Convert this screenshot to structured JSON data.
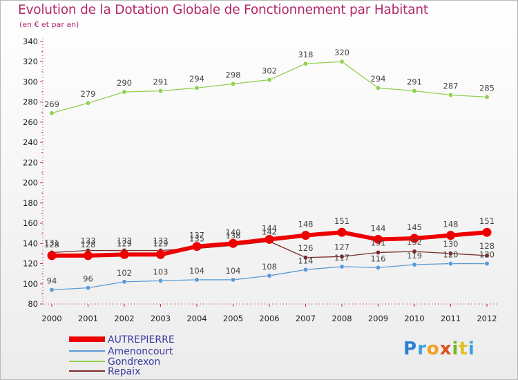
{
  "chart_data": {
    "type": "line",
    "title": "Evolution de la Dotation Globale de Fonctionnement par Habitant",
    "subtitle": "(en € et par an)",
    "xlabel": "",
    "ylabel": "",
    "ylim": [
      80,
      340
    ],
    "yticks": [
      80,
      100,
      120,
      140,
      160,
      180,
      200,
      220,
      240,
      260,
      280,
      300,
      320,
      340
    ],
    "x": [
      "2000",
      "2001",
      "2002",
      "2003",
      "2004",
      "2005",
      "2006",
      "2007",
      "2008",
      "2009",
      "2010",
      "2011",
      "2012"
    ],
    "grid": false,
    "legend": "bottom-left",
    "series": [
      {
        "name": "AUTREPIERRE",
        "color": "#ee0000",
        "values": [
          128,
          128,
          129,
          129,
          137,
          140,
          144,
          148,
          151,
          144,
          145,
          148,
          151
        ]
      },
      {
        "name": "Amenoncourt",
        "color": "#5b9bd5",
        "values": [
          94,
          96,
          102,
          103,
          104,
          104,
          108,
          114,
          117,
          116,
          119,
          120,
          120
        ]
      },
      {
        "name": "Gondrexon",
        "color": "#92d050",
        "values": [
          269,
          279,
          290,
          291,
          294,
          298,
          302,
          318,
          320,
          294,
          291,
          287,
          285
        ]
      },
      {
        "name": "Repaix",
        "color": "#7b2b2b",
        "values": [
          131,
          133,
          133,
          133,
          135,
          138,
          142,
          126,
          127,
          131,
          132,
          130,
          128
        ]
      }
    ]
  },
  "brand": {
    "logo_text": "Proxiti"
  }
}
